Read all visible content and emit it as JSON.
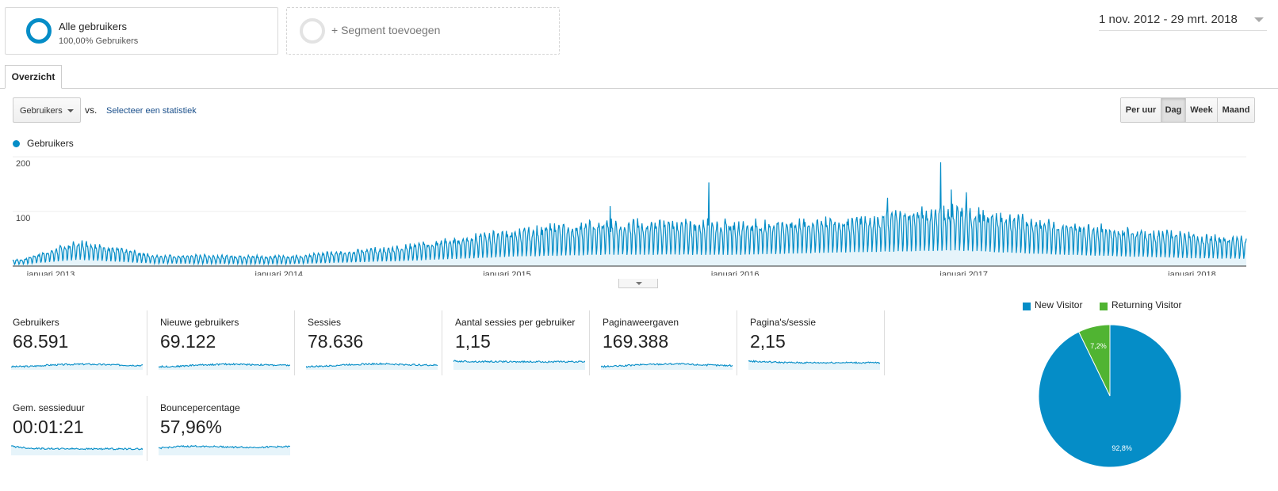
{
  "segments": {
    "all_title": "Alle gebruikers",
    "all_sub": "100,00% Gebruikers",
    "add_label": "+ Segment toevoegen"
  },
  "date_range": "1 nov. 2012 - 29 mrt. 2018",
  "tab": {
    "label": "Overzicht"
  },
  "controls": {
    "metric_select": "Gebruikers",
    "vs": "vs.",
    "select_stat": "Selecteer een statistiek",
    "granularity": [
      "Per uur",
      "Dag",
      "Week",
      "Maand"
    ],
    "granularity_active": "Dag"
  },
  "colors": {
    "series": "#058dc7",
    "new_visitor": "#058dc7",
    "returning_visitor": "#50b432",
    "fill": "#e6f4fa"
  },
  "chart_data": [
    {
      "type": "area",
      "series": [
        {
          "name": "Gebruikers"
        }
      ],
      "x_range": [
        "2012-11-01",
        "2018-03-29"
      ],
      "ylim": [
        0,
        200
      ],
      "yticks": [
        "100",
        "200"
      ],
      "xticks": [
        "januari 2013",
        "januari 2014",
        "januari 2015",
        "januari 2016",
        "januari 2017",
        "januari 2018"
      ],
      "grid": true,
      "legend": "top-left",
      "trend": [
        {
          "date": "2012-11",
          "weekday_peak": 12,
          "weekend_low": 3
        },
        {
          "date": "2013-02",
          "weekday_peak": 45,
          "weekend_low": 10
        },
        {
          "date": "2013-06",
          "weekday_peak": 20,
          "weekend_low": 4
        },
        {
          "date": "2014-01",
          "weekday_peak": 18,
          "weekend_low": 3
        },
        {
          "date": "2014-07",
          "weekday_peak": 35,
          "weekend_low": 8
        },
        {
          "date": "2015-01",
          "weekday_peak": 65,
          "weekend_low": 15
        },
        {
          "date": "2015-06",
          "weekday_peak": 80,
          "weekend_low": 18
        },
        {
          "date": "2016-01",
          "weekday_peak": 78,
          "weekend_low": 18
        },
        {
          "date": "2016-06",
          "weekday_peak": 85,
          "weekend_low": 22
        },
        {
          "date": "2016-12",
          "weekday_peak": 105,
          "weekend_low": 25
        },
        {
          "date": "2017-06",
          "weekday_peak": 75,
          "weekend_low": 18
        },
        {
          "date": "2018-01",
          "weekday_peak": 55,
          "weekend_low": 12
        },
        {
          "date": "2018-03",
          "weekday_peak": 50,
          "weekend_low": 12
        }
      ],
      "spikes": [
        {
          "date": "2015-06-15",
          "value": 110
        },
        {
          "date": "2015-11-20",
          "value": 153
        },
        {
          "date": "2016-09-01",
          "value": 125
        },
        {
          "date": "2016-11-25",
          "value": 190
        },
        {
          "date": "2016-12-12",
          "value": 140
        },
        {
          "date": "2017-01-05",
          "value": 135
        }
      ]
    },
    {
      "type": "pie",
      "slices": [
        {
          "name": "New Visitor",
          "value": 92.8,
          "label": "92,8%"
        },
        {
          "name": "Returning Visitor",
          "value": 7.2,
          "label": "7,2%"
        }
      ],
      "legend": "top"
    }
  ],
  "scorecards": [
    {
      "label": "Gebruikers",
      "value": "68.591",
      "spark": [
        20,
        22,
        30,
        34,
        36,
        33,
        30,
        28
      ]
    },
    {
      "label": "Nieuwe gebruikers",
      "value": "69.122",
      "spark": [
        20,
        22,
        30,
        34,
        36,
        33,
        30,
        28
      ]
    },
    {
      "label": "Sessies",
      "value": "78.636",
      "spark": [
        20,
        23,
        32,
        36,
        38,
        34,
        31,
        29
      ]
    },
    {
      "label": "Aantal sessies per gebruiker",
      "value": "1,15",
      "spark": [
        55,
        52,
        52,
        51,
        51,
        51,
        51,
        51
      ]
    },
    {
      "label": "Paginaweergaven",
      "value": "169.388",
      "spark": [
        20,
        24,
        32,
        36,
        38,
        33,
        29,
        27
      ]
    },
    {
      "label": "Pagina's/sessie",
      "value": "2,15",
      "spark": [
        55,
        50,
        46,
        45,
        45,
        46,
        45,
        45
      ]
    },
    {
      "label": "Gem. sessieduur",
      "value": "00:01:21",
      "spark": [
        58,
        45,
        42,
        42,
        41,
        41,
        41,
        40
      ]
    },
    {
      "label": "Bouncepercentage",
      "value": "57,96%",
      "spark": [
        45,
        55,
        58,
        56,
        52,
        50,
        54,
        55
      ]
    }
  ]
}
